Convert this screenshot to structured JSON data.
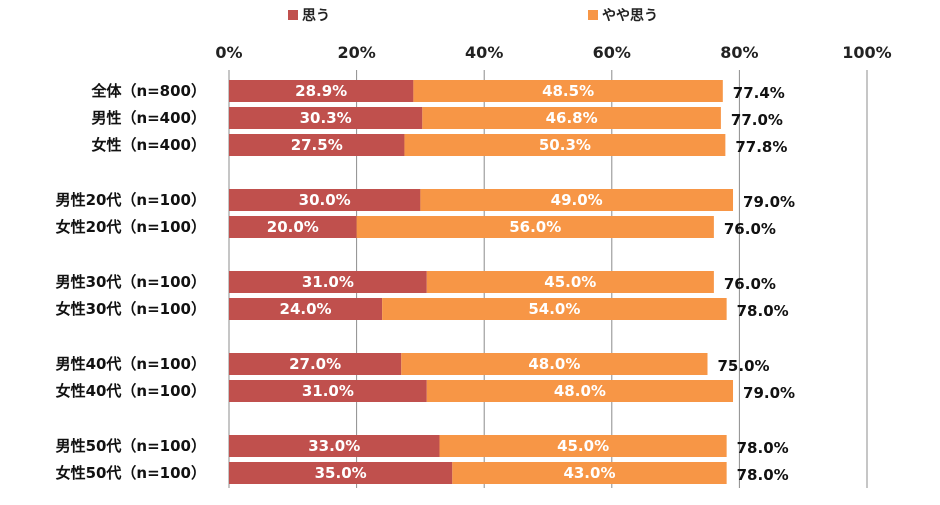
{
  "chart_data": {
    "type": "bar",
    "orientation": "horizontal",
    "stacked": true,
    "categories": [
      "全体（n=800）",
      "男性（n=400）",
      "女性（n=400）",
      "男性20代（n=100）",
      "女性20代（n=100）",
      "男性30代（n=100）",
      "女性30代（n=100）",
      "男性40代（n=100）",
      "女性40代（n=100）",
      "男性50代（n=100）",
      "女性50代（n=100）"
    ],
    "groups": [
      [
        0,
        1,
        2
      ],
      [
        3,
        4
      ],
      [
        5,
        6
      ],
      [
        7,
        8
      ],
      [
        9,
        10
      ]
    ],
    "series": [
      {
        "name": "思う",
        "color": "#c0504d",
        "values": [
          28.9,
          30.3,
          27.5,
          30.0,
          20.0,
          31.0,
          24.0,
          27.0,
          31.0,
          33.0,
          35.0
        ],
        "labels": [
          "28.9%",
          "30.3%",
          "27.5%",
          "30.0%",
          "20.0%",
          "31.0%",
          "24.0%",
          "27.0%",
          "31.0%",
          "33.0%",
          "35.0%"
        ]
      },
      {
        "name": "やや思う",
        "color": "#f79646",
        "values": [
          48.5,
          46.8,
          50.3,
          49.0,
          56.0,
          45.0,
          54.0,
          48.0,
          48.0,
          45.0,
          43.0
        ],
        "labels": [
          "48.5%",
          "46.8%",
          "50.3%",
          "49.0%",
          "56.0%",
          "45.0%",
          "54.0%",
          "48.0%",
          "48.0%",
          "45.0%",
          "43.0%"
        ]
      }
    ],
    "totals": [
      77.4,
      77.0,
      77.8,
      79.0,
      76.0,
      76.0,
      78.0,
      75.0,
      79.0,
      78.0,
      78.0
    ],
    "total_labels": [
      "77.4%",
      "77.0%",
      "77.8%",
      "79.0%",
      "76.0%",
      "76.0%",
      "78.0%",
      "75.0%",
      "79.0%",
      "78.0%",
      "78.0%"
    ],
    "xlim": [
      0,
      100
    ],
    "xticks": [
      "0%",
      "20%",
      "40%",
      "60%",
      "80%",
      "100%"
    ],
    "xtick_values": [
      0,
      20,
      40,
      60,
      80,
      100
    ],
    "grid": true,
    "legend_position": "top",
    "title": "",
    "xlabel": "",
    "ylabel": ""
  }
}
